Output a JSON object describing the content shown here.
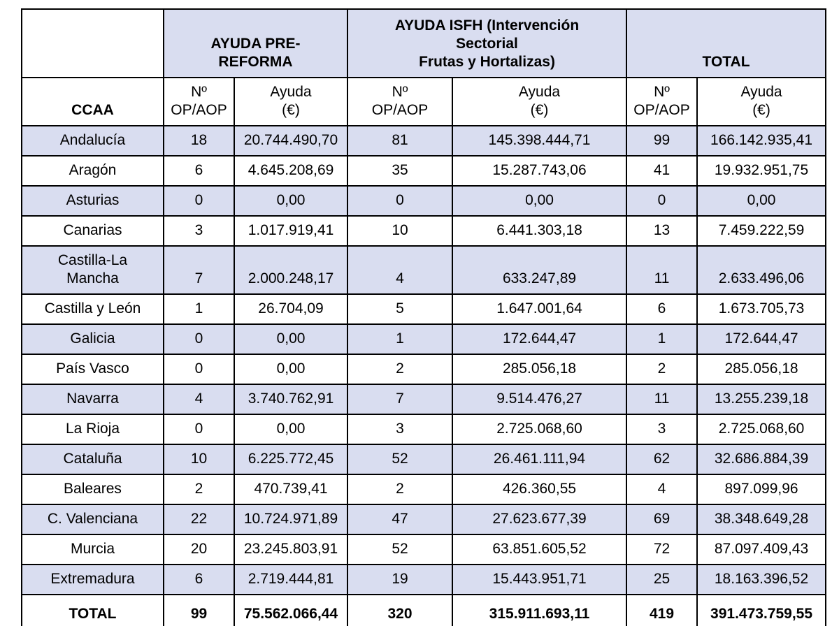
{
  "table": {
    "colors": {
      "band_row": "#d9ddf0",
      "border": "#000000",
      "plain_row": "#ffffff",
      "text": "#000000"
    },
    "groups": [
      {
        "label": "AYUDA PRE-\nREFORMA"
      },
      {
        "label": "AYUDA ISFH (Intervención\nSectorial\nFrutas y Hortalizas)"
      },
      {
        "label": "TOTAL"
      }
    ],
    "subheaders": {
      "ccaa": "CCAA",
      "n_op_aop": "Nº\nOP/AOP",
      "ayuda_eur": "Ayuda\n(€)"
    },
    "rows": [
      {
        "name": "Andalucía",
        "values": [
          "18",
          "20.744.490,70",
          "81",
          "145.398.444,71",
          "99",
          "166.142.935,41"
        ]
      },
      {
        "name": "Aragón",
        "values": [
          "6",
          "4.645.208,69",
          "35",
          "15.287.743,06",
          "41",
          "19.932.951,75"
        ]
      },
      {
        "name": "Asturias",
        "values": [
          "0",
          "0,00",
          "0",
          "0,00",
          "0",
          "0,00"
        ]
      },
      {
        "name": "Canarias",
        "values": [
          "3",
          "1.017.919,41",
          "10",
          "6.441.303,18",
          "13",
          "7.459.222,59"
        ]
      },
      {
        "name": "Castilla-La\nMancha",
        "values": [
          "7",
          "2.000.248,17",
          "4",
          "633.247,89",
          "11",
          "2.633.496,06"
        ]
      },
      {
        "name": "Castilla y León",
        "values": [
          "1",
          "26.704,09",
          "5",
          "1.647.001,64",
          "6",
          "1.673.705,73"
        ]
      },
      {
        "name": "Galicia",
        "values": [
          "0",
          "0,00",
          "1",
          "172.644,47",
          "1",
          "172.644,47"
        ]
      },
      {
        "name": "País Vasco",
        "values": [
          "0",
          "0,00",
          "2",
          "285.056,18",
          "2",
          "285.056,18"
        ]
      },
      {
        "name": "Navarra",
        "values": [
          "4",
          "3.740.762,91",
          "7",
          "9.514.476,27",
          "11",
          "13.255.239,18"
        ]
      },
      {
        "name": "La Rioja",
        "values": [
          "0",
          "0,00",
          "3",
          "2.725.068,60",
          "3",
          "2.725.068,60"
        ]
      },
      {
        "name": "Cataluña",
        "values": [
          "10",
          "6.225.772,45",
          "52",
          "26.461.111,94",
          "62",
          "32.686.884,39"
        ]
      },
      {
        "name": "Baleares",
        "values": [
          "2",
          "470.739,41",
          "2",
          "426.360,55",
          "4",
          "897.099,96"
        ]
      },
      {
        "name": "C. Valenciana",
        "values": [
          "22",
          "10.724.971,89",
          "47",
          "27.623.677,39",
          "69",
          "38.348.649,28"
        ]
      },
      {
        "name": "Murcia",
        "values": [
          "20",
          "23.245.803,91",
          "52",
          "63.851.605,52",
          "72",
          "87.097.409,43"
        ]
      },
      {
        "name": "Extremadura",
        "values": [
          "6",
          "2.719.444,81",
          "19",
          "15.443.951,71",
          "25",
          "18.163.396,52"
        ]
      }
    ],
    "total_row": {
      "label": "TOTAL",
      "values": [
        "99",
        "75.562.066,44",
        "320",
        "315.911.693,11",
        "419",
        "391.473.759,55"
      ]
    }
  }
}
